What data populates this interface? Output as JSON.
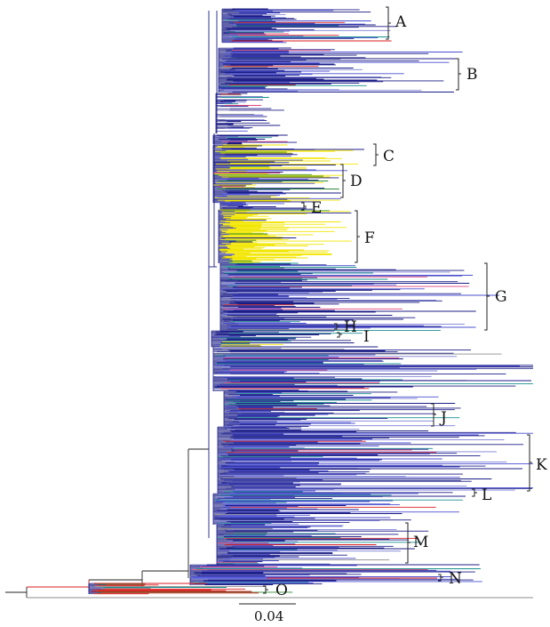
{
  "figure": {
    "clade_labels": [
      "A",
      "B",
      "C",
      "D",
      "E",
      "F",
      "G",
      "H",
      "I",
      "J",
      "K",
      "L",
      "M",
      "N",
      "O"
    ],
    "scale_bar_label": "0.04"
  },
  "colors": {
    "navy": "#1c1e86",
    "blue": "#4a4fd0",
    "lavender": "#7c7fd6",
    "yellow": "#f2e600",
    "red": "#d91e1e",
    "pink": "#e0447e",
    "teal": "#1b8f8f",
    "green": "#2f8a3a",
    "gray": "#8c8c8c",
    "black": "#222222"
  }
}
